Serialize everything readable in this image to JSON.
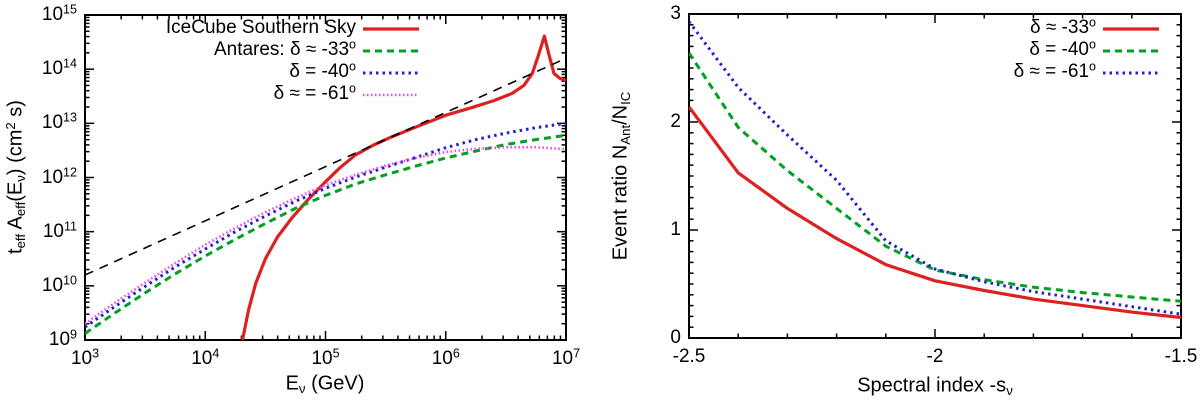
{
  "figure": {
    "background": "#ffffff",
    "axis_color": "#000000",
    "description": "Two-panel figure: left = effective exposure vs neutrino energy (log-log); right = Antares/IceCube event ratio vs spectral index"
  },
  "chart_data": [
    {
      "type": "line",
      "panel": "left",
      "title": "",
      "xscale": "log10",
      "yscale": "log10",
      "xlim_log10": [
        3,
        7
      ],
      "ylim_log10": [
        9,
        15
      ],
      "grid": false,
      "legend_position": "top-left",
      "xlabel_segments": [
        {
          "t": "E"
        },
        {
          "t": "ν",
          "sub": true
        },
        {
          "t": " (GeV)"
        }
      ],
      "ylabel_segments": [
        {
          "t": "t"
        },
        {
          "t": "eff",
          "sub": true
        },
        {
          "t": " A"
        },
        {
          "t": "eff",
          "sub": true
        },
        {
          "t": "(E"
        },
        {
          "t": "ν",
          "sub": true
        },
        {
          "t": ") (cm"
        },
        {
          "t": "2",
          "sup": true
        },
        {
          "t": " s)"
        }
      ],
      "xticks": [
        {
          "v": 3,
          "base": "10",
          "exp": "3"
        },
        {
          "v": 4,
          "base": "10",
          "exp": "4"
        },
        {
          "v": 5,
          "base": "10",
          "exp": "5"
        },
        {
          "v": 6,
          "base": "10",
          "exp": "6"
        },
        {
          "v": 7,
          "base": "10",
          "exp": "7"
        }
      ],
      "yticks": [
        {
          "v": 9,
          "base": "10",
          "exp": "9"
        },
        {
          "v": 10,
          "base": "10",
          "exp": "10"
        },
        {
          "v": 11,
          "base": "10",
          "exp": "11"
        },
        {
          "v": 12,
          "base": "10",
          "exp": "12"
        },
        {
          "v": 13,
          "base": "10",
          "exp": "13"
        },
        {
          "v": 14,
          "base": "10",
          "exp": "14"
        },
        {
          "v": 15,
          "base": "10",
          "exp": "15"
        }
      ],
      "series": [
        {
          "id": "icecube",
          "name": "IceCube Southern Sky",
          "color": "#dd2020",
          "style": "solid",
          "points_log10": [
            [
              4.31,
              9.0
            ],
            [
              4.36,
              9.55
            ],
            [
              4.42,
              10.05
            ],
            [
              4.5,
              10.5
            ],
            [
              4.6,
              10.9
            ],
            [
              4.72,
              11.25
            ],
            [
              4.85,
              11.58
            ],
            [
              5.0,
              11.92
            ],
            [
              5.12,
              12.18
            ],
            [
              5.25,
              12.42
            ],
            [
              5.4,
              12.6
            ],
            [
              5.55,
              12.75
            ],
            [
              5.75,
              12.93
            ],
            [
              6.0,
              13.15
            ],
            [
              6.2,
              13.28
            ],
            [
              6.4,
              13.42
            ],
            [
              6.55,
              13.55
            ],
            [
              6.65,
              13.7
            ],
            [
              6.72,
              13.92
            ],
            [
              6.77,
              14.25
            ],
            [
              6.82,
              14.61
            ],
            [
              6.86,
              14.25
            ],
            [
              6.9,
              13.92
            ],
            [
              6.95,
              13.83
            ],
            [
              7.0,
              13.79
            ]
          ]
        },
        {
          "id": "antares33",
          "name": "Antares: δ ≈ -33°",
          "color": "#00a020",
          "style": "dashed",
          "points_log10": [
            [
              3.0,
              9.12
            ],
            [
              3.25,
              9.5
            ],
            [
              3.5,
              9.87
            ],
            [
              3.75,
              10.22
            ],
            [
              4.0,
              10.55
            ],
            [
              4.25,
              10.86
            ],
            [
              4.5,
              11.15
            ],
            [
              4.75,
              11.43
            ],
            [
              5.0,
              11.67
            ],
            [
              5.25,
              11.88
            ],
            [
              5.5,
              12.05
            ],
            [
              5.75,
              12.21
            ],
            [
              6.0,
              12.36
            ],
            [
              6.25,
              12.49
            ],
            [
              6.5,
              12.61
            ],
            [
              6.75,
              12.7
            ],
            [
              7.0,
              12.78
            ]
          ]
        },
        {
          "id": "antares40",
          "name": "δ = -40°",
          "color": "#2020cc",
          "style": "dotted",
          "points_log10": [
            [
              3.0,
              9.24
            ],
            [
              3.25,
              9.62
            ],
            [
              3.5,
              9.99
            ],
            [
              3.75,
              10.35
            ],
            [
              4.0,
              10.68
            ],
            [
              4.25,
              11.0
            ],
            [
              4.5,
              11.29
            ],
            [
              4.75,
              11.56
            ],
            [
              5.0,
              11.8
            ],
            [
              5.25,
              12.01
            ],
            [
              5.5,
              12.19
            ],
            [
              5.75,
              12.37
            ],
            [
              6.0,
              12.55
            ],
            [
              6.25,
              12.7
            ],
            [
              6.5,
              12.82
            ],
            [
              6.75,
              12.92
            ],
            [
              7.0,
              13.0
            ]
          ]
        },
        {
          "id": "antares61",
          "name": "δ ≈ = -61°",
          "color": "#f040f0",
          "style": "fine-dotted",
          "points_log10": [
            [
              3.0,
              9.3
            ],
            [
              3.25,
              9.69
            ],
            [
              3.5,
              10.06
            ],
            [
              3.75,
              10.42
            ],
            [
              4.0,
              10.76
            ],
            [
              4.25,
              11.07
            ],
            [
              4.5,
              11.36
            ],
            [
              4.75,
              11.62
            ],
            [
              5.0,
              11.86
            ],
            [
              5.25,
              12.05
            ],
            [
              5.5,
              12.22
            ],
            [
              5.75,
              12.36
            ],
            [
              6.0,
              12.47
            ],
            [
              6.25,
              12.53
            ],
            [
              6.5,
              12.56
            ],
            [
              6.75,
              12.56
            ],
            [
              7.0,
              12.52
            ]
          ]
        },
        {
          "id": "reference",
          "name": "unlabeled dashed reference ~E^1",
          "color": "#000000",
          "style": "long-dashed",
          "points_log10": [
            [
              3.0,
              10.2
            ],
            [
              7.0,
              14.2
            ]
          ]
        }
      ],
      "legend_entries": [
        {
          "series": "icecube",
          "segments": [
            {
              "t": "IceCube Southern Sky"
            }
          ]
        },
        {
          "series": "antares33",
          "segments": [
            {
              "t": "Antares: δ ≈ -33"
            },
            {
              "t": "o",
              "sup": true
            }
          ]
        },
        {
          "series": "antares40",
          "segments": [
            {
              "t": "δ = -40"
            },
            {
              "t": "o",
              "sup": true
            }
          ]
        },
        {
          "series": "antares61",
          "segments": [
            {
              "t": "δ ≈ = -61"
            },
            {
              "t": "o",
              "sup": true
            }
          ]
        }
      ]
    },
    {
      "type": "line",
      "panel": "right",
      "title": "",
      "xscale": "linear",
      "yscale": "linear",
      "xlim": [
        -2.5,
        -1.5
      ],
      "ylim": [
        0,
        3
      ],
      "grid": false,
      "legend_position": "top-right",
      "xlabel_segments": [
        {
          "t": "Spectral index -s"
        },
        {
          "t": "ν",
          "sub": true
        }
      ],
      "ylabel_segments": [
        {
          "t": "Event ratio N"
        },
        {
          "t": "Ant",
          "sub": true
        },
        {
          "t": "/N"
        },
        {
          "t": "IC",
          "sub": true
        }
      ],
      "xticks": [
        {
          "v": -2.5,
          "text": "-2.5"
        },
        {
          "v": -2,
          "text": "-2"
        },
        {
          "v": -1.5,
          "text": "-1.5"
        }
      ],
      "yticks": [
        {
          "v": 0,
          "text": "0"
        },
        {
          "v": 1,
          "text": "1"
        },
        {
          "v": 2,
          "text": "2"
        },
        {
          "v": 3,
          "text": "3"
        }
      ],
      "x": [
        -2.5,
        -2.4,
        -2.3,
        -2.2,
        -2.1,
        -2.0,
        -1.9,
        -1.8,
        -1.7,
        -1.6,
        -1.5
      ],
      "series": [
        {
          "id": "ratio33",
          "name": "δ ≈ -33°",
          "color": "#dd2020",
          "style": "solid",
          "values": [
            2.14,
            1.53,
            1.2,
            0.92,
            0.68,
            0.53,
            0.44,
            0.36,
            0.3,
            0.24,
            0.19
          ]
        },
        {
          "id": "ratio40",
          "name": "δ = -40°",
          "color": "#00a020",
          "style": "dashed",
          "values": [
            2.64,
            1.95,
            1.55,
            1.2,
            0.85,
            0.63,
            0.54,
            0.47,
            0.42,
            0.38,
            0.34
          ]
        },
        {
          "id": "ratio61",
          "name": "δ ≈ = -61°",
          "color": "#2020cc",
          "style": "dotted",
          "values": [
            2.93,
            2.32,
            1.88,
            1.46,
            0.9,
            0.64,
            0.52,
            0.43,
            0.36,
            0.29,
            0.22
          ]
        }
      ],
      "legend_entries": [
        {
          "series": "ratio33",
          "segments": [
            {
              "t": "δ ≈ -33"
            },
            {
              "t": "o",
              "sup": true
            }
          ]
        },
        {
          "series": "ratio40",
          "segments": [
            {
              "t": "δ = -40"
            },
            {
              "t": "o",
              "sup": true
            }
          ]
        },
        {
          "series": "ratio61",
          "segments": [
            {
              "t": "δ ≈ = -61"
            },
            {
              "t": "o",
              "sup": true
            }
          ]
        }
      ]
    }
  ]
}
